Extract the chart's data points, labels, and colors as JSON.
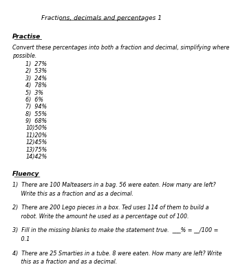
{
  "title": "Fractions, decimals and percentages 1",
  "bg_color": "#ffffff",
  "text_color": "#000000",
  "section1_heading": "Practise",
  "section1_intro_line1": "Convert these percentages into both a fraction and decimal, simplifying where",
  "section1_intro_line2": "possible.",
  "practise_items": [
    "1)  27%",
    "2)  53%",
    "3)  24%",
    "4)  78%",
    "5)  3%",
    "6)  6%",
    "7)  94%",
    "8)  55%",
    "9)  68%",
    "10)50%",
    "11)20%",
    "12)45%",
    "13)75%",
    "14)42%"
  ],
  "section2_heading": "Fluency",
  "fluency_items": [
    [
      "1)  There are 100 Malteasers in a bag. 56 were eaten. How many are left?",
      "     Write this as a fraction and as a decimal."
    ],
    [
      "2)  There are 200 Lego pieces in a box. Ted uses 114 of them to build a",
      "     robot. Write the amount he used as a percentage out of 100."
    ],
    [
      "3)  Fill in the missing blanks to make the statement true.  ___% = __/100 =",
      "     0.1"
    ],
    [
      "4)  There are 25 Smarties in a tube. 8 were eaten. How many are left? Write",
      "     this as a fraction and as a decimal."
    ]
  ],
  "title_fontsize": 6.5,
  "heading_fontsize": 6.5,
  "body_fontsize": 5.8,
  "item_fontsize": 5.8
}
